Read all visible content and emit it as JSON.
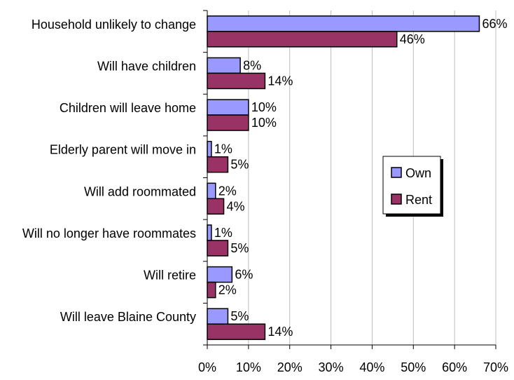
{
  "chart_data": {
    "type": "bar",
    "orientation": "horizontal",
    "categories": [
      "Household unlikely to change",
      "Will have children",
      "Children will leave home",
      "Elderly parent will move in",
      "Will add roommated",
      "Will no longer have roommates",
      "Will retire",
      "Will leave Blaine County"
    ],
    "series": [
      {
        "name": "Own",
        "color": "#9999ff",
        "values": [
          66,
          8,
          10,
          1,
          2,
          1,
          6,
          5
        ]
      },
      {
        "name": "Rent",
        "color": "#993366",
        "values": [
          46,
          14,
          10,
          5,
          4,
          5,
          2,
          14
        ]
      }
    ],
    "xlim": [
      0,
      70
    ],
    "xticks": [
      0,
      10,
      20,
      30,
      40,
      50,
      60,
      70
    ],
    "tick_suffix": "%",
    "value_suffix": "%",
    "grid": true,
    "legend": "right"
  }
}
